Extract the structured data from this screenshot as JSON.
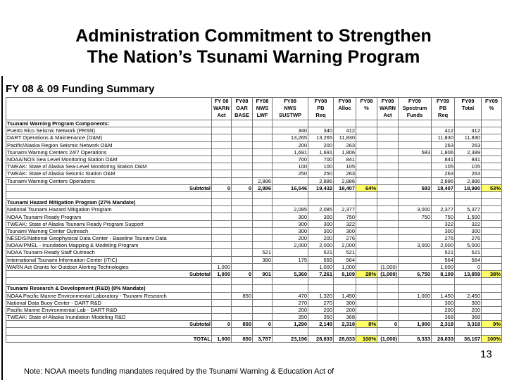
{
  "title": [
    "Administration Commitment to Strengthen",
    "The Nation’s Tsunami Warning Program"
  ],
  "subtitle": "FY 08 & 09 Funding Summary",
  "table": {
    "columns": [
      [
        "FY 08",
        "WARN",
        "Act"
      ],
      [
        "FY08",
        "OAR",
        "BASE"
      ],
      [
        "FY08",
        "NWS",
        "LWF"
      ],
      [
        "FY08",
        "NWS",
        "SUSTWP"
      ],
      [
        "FY08",
        "PB",
        "Req"
      ],
      [
        "FY08",
        "Alloc"
      ],
      [
        "FY08",
        "%"
      ],
      [
        "FY09",
        "WARN",
        "Act"
      ],
      [
        "FY09",
        "Spectrum",
        "Funds"
      ],
      [
        "FY09",
        "PB",
        "Req"
      ],
      [
        "FY09",
        "Total"
      ],
      [
        "FY09",
        "%"
      ]
    ],
    "sections": [
      {
        "heading": "Tsunami Warning Program Components:",
        "rows": [
          {
            "label": "Puerto Rico Seismic Network (PRSN)",
            "cells": [
              null,
              null,
              null,
              "340",
              "340",
              "412",
              null,
              null,
              null,
              "412",
              "412",
              null
            ]
          },
          {
            "label": "DART Operations & Maintenance (O&M)",
            "cells": [
              null,
              null,
              null,
              "13,265",
              "13,265",
              "11,830",
              null,
              null,
              null,
              "11,830",
              "11,830",
              null
            ]
          },
          {
            "label": "Pacific/Alaska Region Seismic Network O&M",
            "cells": [
              null,
              null,
              null,
              "200",
              "200",
              "263",
              null,
              null,
              null,
              "263",
              "263",
              null
            ]
          },
          {
            "label": "Tsunami Warning Centers 24/7 Operations",
            "cells": [
              null,
              null,
              null,
              "1,691",
              "1,691",
              "1,806",
              null,
              null,
              "583",
              "1,806",
              "2,389",
              null
            ]
          },
          {
            "label": "NOAA/NOS Sea Level Monitoring Station O&M",
            "cells": [
              null,
              null,
              null,
              "700",
              "700",
              "841",
              null,
              null,
              null,
              "841",
              "841",
              null
            ]
          },
          {
            "label": "TWEAK: State of Alaska Sea-Level Monitoring Station O&M",
            "cells": [
              null,
              null,
              null,
              "100",
              "100",
              "105",
              null,
              null,
              null,
              "105",
              "105",
              null
            ]
          },
          {
            "label": "TWEAK: State of Alaska Seismic Station O&M",
            "cells": [
              null,
              null,
              null,
              "250",
              "250",
              "263",
              null,
              null,
              null,
              "263",
              "263",
              null
            ]
          },
          {
            "label": "Tsunami Warning Centers Operations",
            "cells": [
              null,
              null,
              "2,886",
              null,
              "2,886",
              "2,886",
              null,
              null,
              null,
              "2,886",
              "2,886",
              null
            ]
          }
        ],
        "subtotal": {
          "label": "Subtotal",
          "cells": [
            "0",
            "0",
            "2,886",
            "16,546",
            "19,432",
            "18,407",
            "64%",
            null,
            "583",
            "18,407",
            "18,990",
            "53%"
          ]
        }
      },
      {
        "heading": "Tsunami Hazard Mitigation Program (27% Mandate)",
        "rows": [
          {
            "label": "National Tsunami Hazard Mitigation Program",
            "cells": [
              null,
              null,
              null,
              "2,085",
              "2,085",
              "2,377",
              null,
              null,
              "3,000",
              "2,377",
              "5,377",
              null
            ]
          },
          {
            "label": "NOAA Tsunami Ready Program",
            "cells": [
              null,
              null,
              null,
              "300",
              "300",
              "750",
              null,
              null,
              "750",
              "750",
              "1,500",
              null
            ]
          },
          {
            "label": "TWEAK: State of Alaska Tsunami Ready Program Support",
            "cells": [
              null,
              null,
              null,
              "300",
              "300",
              "322",
              null,
              null,
              null,
              "322",
              "322",
              null
            ]
          },
          {
            "label": "Tsunami Warning Center Outreach",
            "cells": [
              null,
              null,
              null,
              "300",
              "300",
              "300",
              null,
              null,
              null,
              "300",
              "300",
              null
            ]
          },
          {
            "label": "NESDIS/National Geophysical Data Center - Baseline Tsunami Data",
            "cells": [
              null,
              null,
              null,
              "200",
              "200",
              "276",
              null,
              null,
              null,
              "276",
              "276",
              null
            ]
          },
          {
            "label": "NOAA/PMEL - Inundation Mapping & Modeling Program",
            "cells": [
              null,
              null,
              null,
              "2,000",
              "2,000",
              "2,000",
              null,
              null,
              "3,000",
              "2,000",
              "5,000",
              null
            ]
          },
          {
            "label": "NOAA Tsunami Ready Staff Outreach",
            "cells": [
              null,
              null,
              "521",
              null,
              "521",
              "521",
              null,
              null,
              null,
              "521",
              "521",
              null
            ]
          },
          {
            "label": "International Tsunami Information Center (ITIC)",
            "cells": [
              null,
              null,
              "380",
              "175",
              "555",
              "564",
              null,
              null,
              null,
              "564",
              "564",
              null
            ]
          },
          {
            "label": "WARN Act Grants for Outdoor Alerting Technologies",
            "cells": [
              "1,000",
              null,
              null,
              null,
              "1,000",
              "1,000",
              null,
              "(1,000)",
              null,
              "1,000",
              "0",
              null
            ]
          }
        ],
        "subtotal": {
          "label": "Subtotal",
          "cells": [
            "1,000",
            "0",
            "901",
            "5,360",
            "7,261",
            "8,109",
            "28%",
            "(1,000)",
            "6,750",
            "8,109",
            "13,859",
            "38%"
          ]
        }
      },
      {
        "heading": "Tsunami Research & Development (R&D) (8% Mandate)",
        "rows": [
          {
            "label": "NOAA Pacific Marine Environmental Laboratory - Tsunami Research",
            "cells": [
              null,
              "850",
              null,
              "470",
              "1,320",
              "1,450",
              null,
              null,
              "1,000",
              "1,450",
              "2,450",
              null
            ]
          },
          {
            "label": "National Data Buoy Center - DART R&D",
            "cells": [
              null,
              null,
              null,
              "270",
              "270",
              "300",
              null,
              null,
              null,
              "300",
              "300",
              null
            ]
          },
          {
            "label": "Pacific Marine Environmental Lab - DART R&D",
            "cells": [
              null,
              null,
              null,
              "200",
              "200",
              "200",
              null,
              null,
              null,
              "200",
              "200",
              null
            ]
          },
          {
            "label": "TWEAK: State of Alaska Inundation Modeling R&D",
            "cells": [
              null,
              null,
              null,
              "350",
              "350",
              "368",
              null,
              null,
              null,
              "368",
              "368",
              null
            ]
          }
        ],
        "subtotal": {
          "label": "Subtotal",
          "cells": [
            "0",
            "850",
            "0",
            "1,290",
            "2,140",
            "2,318",
            "8%",
            "0",
            "1,000",
            "2,318",
            "3,318",
            "9%"
          ]
        }
      }
    ],
    "total": {
      "label": "TOTAL",
      "cells": [
        "1,000",
        "850",
        "3,787",
        "23,196",
        "28,833",
        "28,833",
        "100%",
        "(1,000)",
        "8,333",
        "28,833",
        "36,167",
        "100%"
      ]
    }
  },
  "page_number": "13",
  "note": "Note: NOAA meets funding mandates required by the Tsunami Warning & Education Act of"
}
